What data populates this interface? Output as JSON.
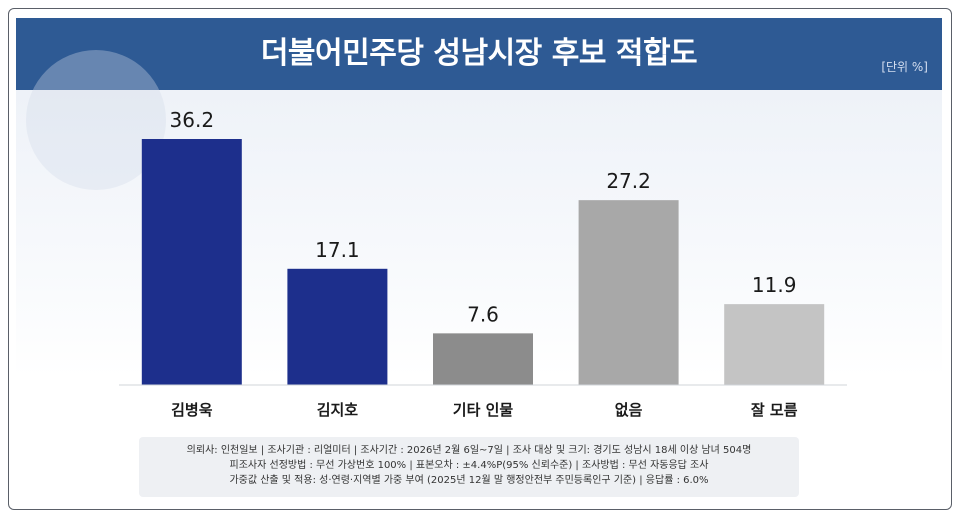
{
  "header": {
    "title": "더불어민주당 성남시장 후보 적합도",
    "unit": "[단위 %]"
  },
  "colors": {
    "title_bar": "#2e5a94",
    "bar_candidate": "#1d2f8c",
    "bar_other": "#8c8c8c",
    "bar_none": "#a8a8a8",
    "bar_unknown": "#c4c4c4"
  },
  "chart_data": {
    "type": "bar",
    "categories": [
      "김병욱",
      "김지호",
      "기타 인물",
      "없음",
      "잘 모름"
    ],
    "values": [
      36.2,
      17.1,
      7.6,
      27.2,
      11.9
    ],
    "value_labels": [
      "36.2",
      "17.1",
      "7.6",
      "27.2",
      "11.9"
    ],
    "bar_colors": [
      "#1d2f8c",
      "#1d2f8c",
      "#8c8c8c",
      "#a8a8a8",
      "#c4c4c4"
    ],
    "title": "더불어민주당 성남시장 후보 적합도",
    "xlabel": "",
    "ylabel": "",
    "ylim": [
      0,
      36.2
    ],
    "grid": false,
    "legend": "none"
  },
  "footnote": {
    "line1": "의뢰사: 인천일보 | 조사기관 : 리얼미터  |  조사기간 : 2026년 2월 6일~7일 | 조사 대상 및 크기: 경기도 성남시 18세 이상 남녀 504명",
    "line2": "피조사자 선정방법 : 무선 가상번호 100% | 표본오차 : ±4.4%P(95% 신뢰수준) | 조사방법 : 무선 자동응답 조사",
    "line3": "가중값 산출 및 적용: 성·연령·지역별 가중 부여 (2025년 12월 말 행정안전부 주민등록인구 기준) | 응답률 : 6.0%"
  }
}
